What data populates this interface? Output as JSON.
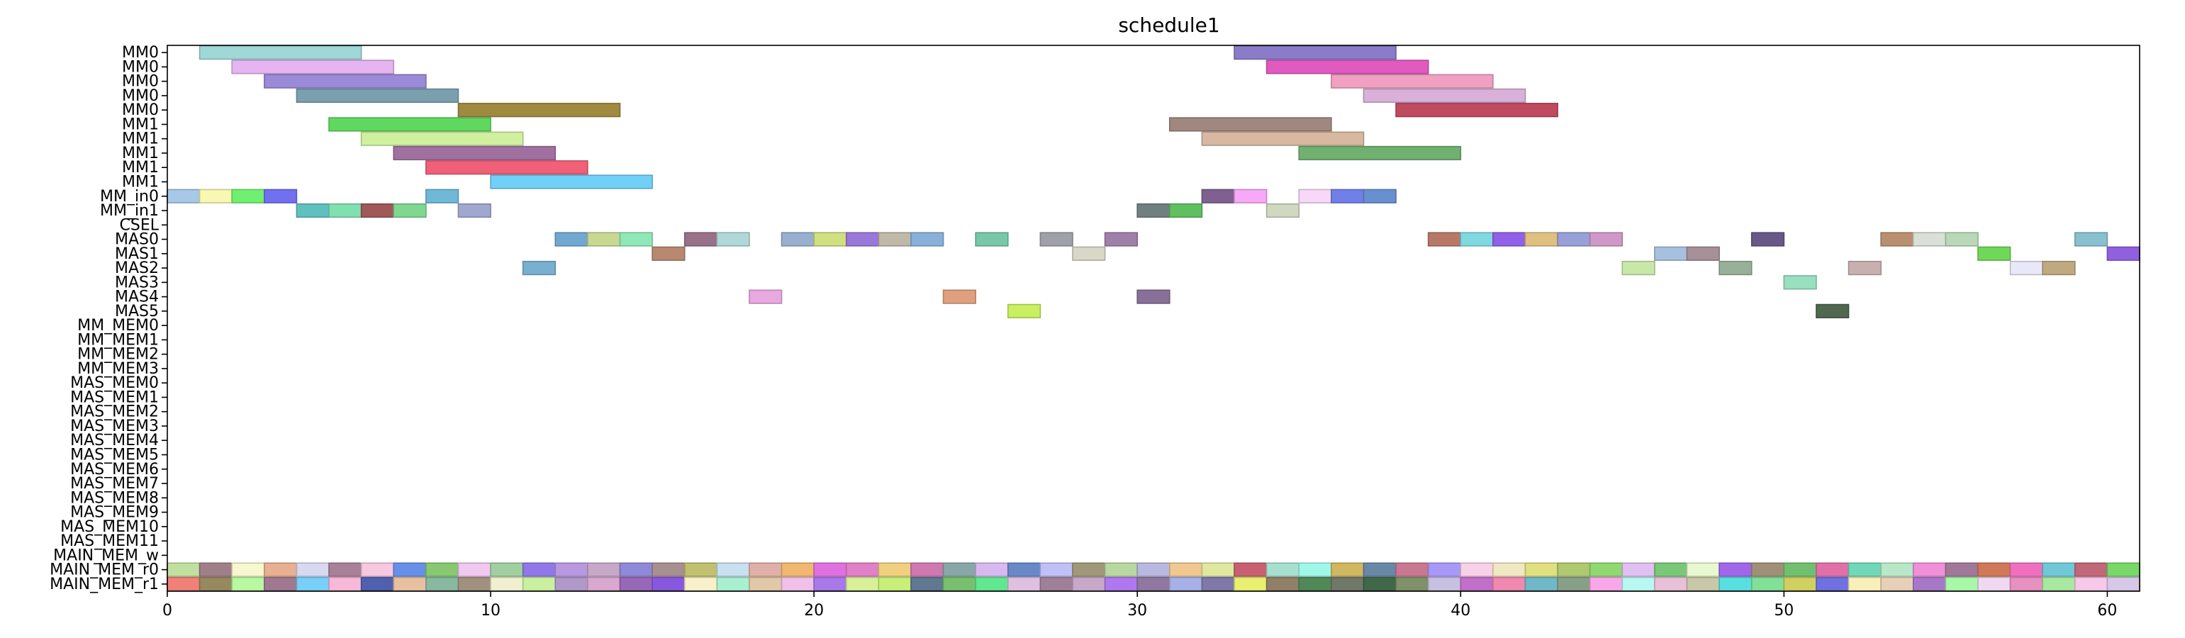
{
  "chart_data": {
    "type": "gantt",
    "title": "schedule1",
    "xlabel": "",
    "ylabel": "",
    "xlim": [
      0,
      61
    ],
    "xticks": [
      0,
      10,
      20,
      30,
      40,
      50,
      60
    ],
    "grid": false,
    "rows": [
      "MM0",
      "MM0",
      "MM0",
      "MM0",
      "MM0",
      "MM1",
      "MM1",
      "MM1",
      "MM1",
      "MM1",
      "MM_in0",
      "MM_in1",
      "CSEL",
      "MAS0",
      "MAS1",
      "MAS2",
      "MAS3",
      "MAS4",
      "MAS5",
      "MM_MEM0",
      "MM_MEM1",
      "MM_MEM2",
      "MM_MEM3",
      "MAS_MEM0",
      "MAS_MEM1",
      "MAS_MEM2",
      "MAS_MEM3",
      "MAS_MEM4",
      "MAS_MEM5",
      "MAS_MEM6",
      "MAS_MEM7",
      "MAS_MEM8",
      "MAS_MEM9",
      "MAS_MEM10",
      "MAS_MEM11",
      "MAIN_MEM_w",
      "MAIN_MEM_r0",
      "MAIN_MEM_r1"
    ],
    "tasks": [
      {
        "row": 0,
        "start": 1,
        "end": 6,
        "color": "#9fd8d6"
      },
      {
        "row": 0,
        "start": 33,
        "end": 38,
        "color": "#8a7cc8"
      },
      {
        "row": 1,
        "start": 2,
        "end": 7,
        "color": "#e6b4f0"
      },
      {
        "row": 1,
        "start": 34,
        "end": 39,
        "color": "#e05ac0"
      },
      {
        "row": 2,
        "start": 3,
        "end": 8,
        "color": "#9a8ad8"
      },
      {
        "row": 2,
        "start": 36,
        "end": 41,
        "color": "#f0a0c0"
      },
      {
        "row": 3,
        "start": 4,
        "end": 9,
        "color": "#7aa0b0"
      },
      {
        "row": 3,
        "start": 37,
        "end": 42,
        "color": "#d8b0d8"
      },
      {
        "row": 4,
        "start": 9,
        "end": 14,
        "color": "#a08a40"
      },
      {
        "row": 4,
        "start": 38,
        "end": 43,
        "color": "#c04a60"
      },
      {
        "row": 5,
        "start": 5,
        "end": 10,
        "color": "#60d860"
      },
      {
        "row": 5,
        "start": 31,
        "end": 36,
        "color": "#a08880"
      },
      {
        "row": 6,
        "start": 6,
        "end": 11,
        "color": "#d0f0a0"
      },
      {
        "row": 6,
        "start": 32,
        "end": 37,
        "color": "#d8b8a0"
      },
      {
        "row": 7,
        "start": 7,
        "end": 12,
        "color": "#a070a0"
      },
      {
        "row": 7,
        "start": 35,
        "end": 40,
        "color": "#70b070"
      },
      {
        "row": 8,
        "start": 8,
        "end": 13,
        "color": "#f06078"
      },
      {
        "row": 9,
        "start": 10,
        "end": 15,
        "color": "#70d0f8"
      },
      {
        "row": 10,
        "start": 0,
        "end": 1,
        "color": "#a8c8e8"
      },
      {
        "row": 10,
        "start": 1,
        "end": 2,
        "color": "#f8f8b0"
      },
      {
        "row": 10,
        "start": 2,
        "end": 3,
        "color": "#70f070"
      },
      {
        "row": 10,
        "start": 3,
        "end": 4,
        "color": "#7070f0"
      },
      {
        "row": 10,
        "start": 8,
        "end": 9,
        "color": "#70b8d8"
      },
      {
        "row": 10,
        "start": 32,
        "end": 33,
        "color": "#806090"
      },
      {
        "row": 10,
        "start": 33,
        "end": 34,
        "color": "#f8a8f8"
      },
      {
        "row": 10,
        "start": 35,
        "end": 36,
        "color": "#f8d8f8"
      },
      {
        "row": 10,
        "start": 36,
        "end": 37,
        "color": "#7080e8"
      },
      {
        "row": 10,
        "start": 37,
        "end": 38,
        "color": "#6890d0"
      },
      {
        "row": 11,
        "start": 4,
        "end": 5,
        "color": "#60c0c0"
      },
      {
        "row": 11,
        "start": 5,
        "end": 6,
        "color": "#80e0b0"
      },
      {
        "row": 11,
        "start": 6,
        "end": 7,
        "color": "#a05858"
      },
      {
        "row": 11,
        "start": 7,
        "end": 8,
        "color": "#80d890"
      },
      {
        "row": 11,
        "start": 9,
        "end": 10,
        "color": "#a0a8d0"
      },
      {
        "row": 11,
        "start": 30,
        "end": 31,
        "color": "#708080"
      },
      {
        "row": 11,
        "start": 31,
        "end": 32,
        "color": "#60c060"
      },
      {
        "row": 11,
        "start": 34,
        "end": 35,
        "color": "#d0d8c0"
      },
      {
        "row": 13,
        "start": 12,
        "end": 13,
        "color": "#70a8d0"
      },
      {
        "row": 13,
        "start": 13,
        "end": 14,
        "color": "#c8d890"
      },
      {
        "row": 13,
        "start": 14,
        "end": 15,
        "color": "#90e8b8"
      },
      {
        "row": 13,
        "start": 16,
        "end": 17,
        "color": "#987088"
      },
      {
        "row": 13,
        "start": 17,
        "end": 18,
        "color": "#b0d8d8"
      },
      {
        "row": 13,
        "start": 19,
        "end": 20,
        "color": "#98b0d0"
      },
      {
        "row": 13,
        "start": 20,
        "end": 21,
        "color": "#d0e080"
      },
      {
        "row": 13,
        "start": 21,
        "end": 22,
        "color": "#9878d8"
      },
      {
        "row": 13,
        "start": 22,
        "end": 23,
        "color": "#c0b8a8"
      },
      {
        "row": 13,
        "start": 23,
        "end": 24,
        "color": "#88b0d8"
      },
      {
        "row": 13,
        "start": 25,
        "end": 26,
        "color": "#78c8a8"
      },
      {
        "row": 13,
        "start": 27,
        "end": 28,
        "color": "#a0a0a8"
      },
      {
        "row": 13,
        "start": 29,
        "end": 30,
        "color": "#a080a8"
      },
      {
        "row": 13,
        "start": 39,
        "end": 40,
        "color": "#b87868"
      },
      {
        "row": 13,
        "start": 40,
        "end": 41,
        "color": "#80d8e0"
      },
      {
        "row": 13,
        "start": 41,
        "end": 42,
        "color": "#9060e8"
      },
      {
        "row": 13,
        "start": 42,
        "end": 43,
        "color": "#e0c080"
      },
      {
        "row": 13,
        "start": 43,
        "end": 44,
        "color": "#98a0d8"
      },
      {
        "row": 13,
        "start": 44,
        "end": 45,
        "color": "#d098c8"
      },
      {
        "row": 13,
        "start": 49,
        "end": 50,
        "color": "#685888"
      },
      {
        "row": 13,
        "start": 53,
        "end": 54,
        "color": "#b89070"
      },
      {
        "row": 13,
        "start": 54,
        "end": 55,
        "color": "#d8e0d8"
      },
      {
        "row": 13,
        "start": 55,
        "end": 56,
        "color": "#b8d8b8"
      },
      {
        "row": 13,
        "start": 59,
        "end": 60,
        "color": "#88c0d0"
      },
      {
        "row": 14,
        "start": 15,
        "end": 16,
        "color": "#b88870"
      },
      {
        "row": 14,
        "start": 28,
        "end": 29,
        "color": "#d8d8c8"
      },
      {
        "row": 14,
        "start": 46,
        "end": 47,
        "color": "#a8c0e0"
      },
      {
        "row": 14,
        "start": 47,
        "end": 48,
        "color": "#a89098"
      },
      {
        "row": 14,
        "start": 56,
        "end": 57,
        "color": "#70d858"
      },
      {
        "row": 14,
        "start": 60,
        "end": 61,
        "color": "#9060e0"
      },
      {
        "row": 15,
        "start": 11,
        "end": 12,
        "color": "#78b0d0"
      },
      {
        "row": 15,
        "start": 45,
        "end": 46,
        "color": "#c8e8a8"
      },
      {
        "row": 15,
        "start": 48,
        "end": 49,
        "color": "#98b098"
      },
      {
        "row": 15,
        "start": 52,
        "end": 53,
        "color": "#c8b0b0"
      },
      {
        "row": 15,
        "start": 57,
        "end": 58,
        "color": "#e8e8f8"
      },
      {
        "row": 15,
        "start": 58,
        "end": 59,
        "color": "#c0a880"
      },
      {
        "row": 16,
        "start": 50,
        "end": 51,
        "color": "#98e0c0"
      },
      {
        "row": 17,
        "start": 18,
        "end": 19,
        "color": "#e8a8e0"
      },
      {
        "row": 17,
        "start": 24,
        "end": 25,
        "color": "#e0a080"
      },
      {
        "row": 17,
        "start": 30,
        "end": 31,
        "color": "#887098"
      },
      {
        "row": 18,
        "start": 26,
        "end": 27,
        "color": "#c8f060"
      },
      {
        "row": 18,
        "start": 51,
        "end": 52,
        "color": "#506850"
      }
    ],
    "mem_rows": [
      {
        "row": 36,
        "colors": [
          "#c0e0a0",
          "#a08088",
          "#f8f8d0",
          "#e8b090",
          "#d8d8f0",
          "#a88098",
          "#f8c8e0",
          "#6890e8",
          "#88c870",
          "#f0c8f0",
          "#a0d0a0",
          "#9078e8",
          "#b898e0",
          "#c8a8c8",
          "#9088d8",
          "#a89090",
          "#c0c070",
          "#c8e0f0",
          "#e0b0a8",
          "#f0b870",
          "#e070e0",
          "#e080c8",
          "#f0d080",
          "#d078b0",
          "#88a8a8",
          "#d8b8f0",
          "#6888c8",
          "#c0c0f8",
          "#a09878",
          "#b8d8a0",
          "#b8b8e0",
          "#f0c890",
          "#e0e8a0",
          "#c86070",
          "#a8e0d0",
          "#a0f8e8",
          "#d0b860",
          "#6888a8",
          "#c87890",
          "#a898f8",
          "#f8d0e8",
          "#f0e8c0",
          "#e0e080",
          "#b0c870",
          "#90d870",
          "#e0c0f0",
          "#78c878",
          "#e8f8d0",
          "#a068e8",
          "#a09078",
          "#70c070",
          "#e070a8",
          "#70d8b8",
          "#b8e8c8",
          "#f090d8",
          "#a07898",
          "#d07858",
          "#f070c0",
          "#70c8d8",
          "#c06878",
          "#78d868"
        ]
      },
      {
        "row": 37,
        "colors": [
          "#f08078",
          "#988860",
          "#b8f8a0",
          "#a07890",
          "#78d0f8",
          "#f8b8d8",
          "#5060b0",
          "#e8c0a0",
          "#88b8a0",
          "#a09080",
          "#f0f0d0",
          "#c8f0a0",
          "#b098c8",
          "#d8a8d0",
          "#9868b8",
          "#8858e0",
          "#f8f0c8",
          "#a8f0d0",
          "#e0c8a8",
          "#f0c0e8",
          "#a878e8",
          "#d8f098",
          "#c8f078",
          "#607890",
          "#78c070",
          "#60e890",
          "#e0c0e0",
          "#a08098",
          "#c8a8c8",
          "#b078f0",
          "#9078a0",
          "#a8b0e8",
          "#8078a8",
          "#e8f070",
          "#908068",
          "#508858",
          "#707868",
          "#406848",
          "#809068",
          "#c8c0e0",
          "#c070c8",
          "#f088b0",
          "#70b8c8",
          "#88a088",
          "#f8a8e8",
          "#b8f8f0",
          "#e8c0d8",
          "#c8c8a8",
          "#58e0e0",
          "#80e098",
          "#d0d060",
          "#7070e0",
          "#f8f0b8",
          "#e8d0b8",
          "#a878c8",
          "#a8f8a8",
          "#f0d8f0",
          "#e890c0",
          "#a8e8a0",
          "#f8c8e8",
          "#d8c8e8"
        ]
      }
    ]
  }
}
